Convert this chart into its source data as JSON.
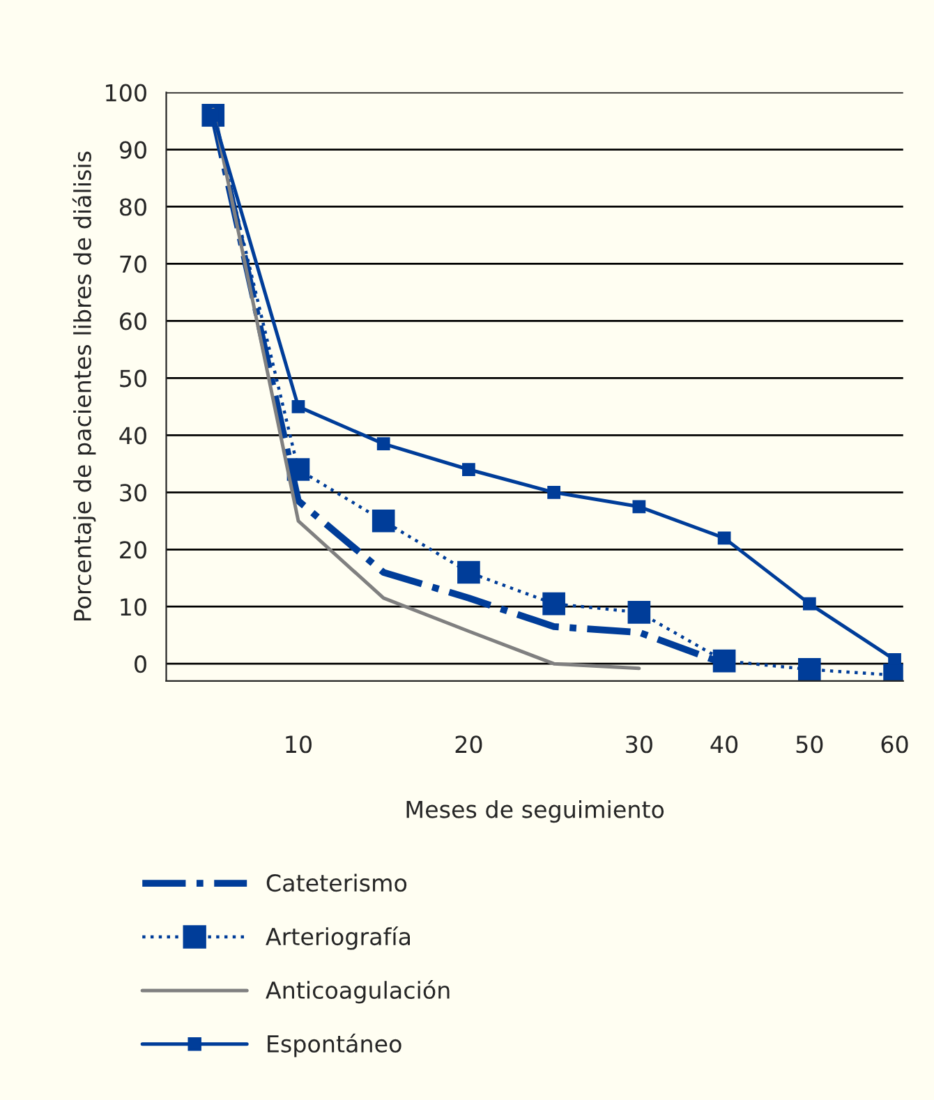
{
  "chart_data": {
    "type": "line",
    "xlabel": "Meses de seguimiento",
    "ylabel": "Porcentaje de pacientes libres de diálisis",
    "categories": [
      null,
      "10",
      null,
      "20",
      null,
      "30",
      "40",
      "50",
      "60"
    ],
    "ylim": [
      -3,
      100
    ],
    "yticks": [
      0,
      10,
      20,
      30,
      40,
      50,
      60,
      70,
      80,
      90,
      100
    ],
    "grid": "y",
    "legend": "bottom",
    "series": [
      {
        "name": "Cateterismo",
        "color": "#003d99",
        "line_style": "dashdot",
        "marker": "none",
        "values": [
          96,
          28.5,
          16,
          11.5,
          6.5,
          5.5,
          0,
          null,
          null
        ]
      },
      {
        "name": "Arteriografía",
        "color": "#003d99",
        "line_style": "dotted",
        "marker": "square",
        "values": [
          96,
          34,
          25,
          16,
          10.5,
          9,
          0.5,
          -1,
          -2
        ]
      },
      {
        "name": "Anticoagulación",
        "color": "#808080",
        "line_style": "solid",
        "marker": "none",
        "values": [
          97,
          25,
          11.5,
          5.7,
          0,
          -0.8,
          null,
          null,
          null
        ]
      },
      {
        "name": "Espontáneo",
        "color": "#003d99",
        "line_style": "solid",
        "marker": "square",
        "values": [
          96,
          45,
          38.5,
          34,
          30,
          27.5,
          22,
          10.5,
          0.7
        ]
      }
    ]
  }
}
